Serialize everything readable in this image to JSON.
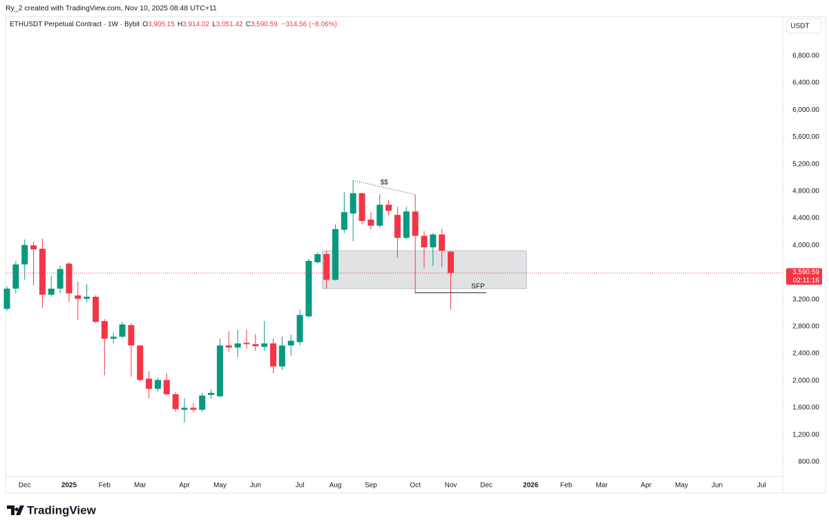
{
  "chart_data": {
    "type": "candlestick",
    "watermark": "Ry_2 created with TradingView.com, Nov 10, 2025 08:48 UTC+11",
    "title": "ETHUSDT Perpetual Contract · 1W · Bybit",
    "header": {
      "open_key": "O",
      "open": "3,905.15",
      "high_key": "H",
      "high": "3,914.02",
      "low_key": "L",
      "low": "3,051.42",
      "close_key": "C",
      "close": "3,590.59",
      "change": "−314.56 (−8.06%)"
    },
    "currency": "USDT",
    "last_price_label": "3,590.59",
    "countdown": "02:11:16",
    "brand": "TradingView",
    "up_color": "#089981",
    "down_color": "#f23645",
    "grid": false,
    "categories": [
      null,
      null,
      "Dec",
      null,
      null,
      null,
      null,
      "2025",
      null,
      null,
      null,
      "Feb",
      null,
      null,
      null,
      "Mar",
      null,
      null,
      null,
      null,
      "Apr",
      null,
      null,
      null,
      "May",
      null,
      null,
      null,
      "Jun",
      null,
      null,
      null,
      null,
      "Jul",
      null,
      null,
      null,
      "Aug",
      null,
      null,
      null,
      "Sep",
      null,
      null,
      null,
      null,
      "Oct",
      null,
      null,
      null,
      "Nov",
      null,
      null,
      null,
      "Dec",
      null,
      null,
      null,
      null,
      "2026",
      null,
      null,
      null,
      "Feb",
      null,
      null,
      null,
      "Mar",
      null,
      null,
      null,
      null,
      "Apr",
      null,
      null,
      null,
      "May",
      null,
      null,
      null,
      "Jun",
      null,
      null,
      null,
      null,
      "Jul"
    ],
    "open": [
      3063,
      3360,
      3718,
      4000,
      3950,
      3270,
      3360,
      3730,
      3260,
      3210,
      3240,
      2880,
      2620,
      2650,
      2820,
      2520,
      2030,
      1880,
      2010,
      1800,
      1570,
      1600,
      1570,
      1790,
      1770,
      2520,
      2490,
      2560,
      2540,
      2500,
      2550,
      2210,
      2520,
      2570,
      2950,
      3750,
      3870,
      3490,
      4230,
      4470,
      4770,
      4380,
      4290,
      4600,
      4450,
      4110,
      4500,
      4140,
      3970,
      4160,
      3905.15,
      null,
      null,
      null,
      null,
      null,
      null,
      null,
      null,
      null,
      null,
      null,
      null,
      null,
      null,
      null,
      null,
      null,
      null,
      null,
      null,
      null,
      null,
      null,
      null,
      null,
      null,
      null,
      null,
      null,
      null,
      null,
      null,
      null,
      null,
      null
    ],
    "high": [
      3400,
      3770,
      4087,
      4055,
      4100,
      3550,
      3700,
      3750,
      3460,
      3430,
      3260,
      2910,
      2710,
      2870,
      2850,
      2520,
      2140,
      2040,
      2110,
      1830,
      1740,
      1670,
      1820,
      1870,
      2620,
      2730,
      2750,
      2750,
      2690,
      2880,
      2620,
      2650,
      2680,
      3050,
      3800,
      3900,
      3920,
      4310,
      4790,
      4960,
      4770,
      4490,
      4750,
      4670,
      4570,
      4570,
      4750,
      4210,
      4180,
      4240,
      3914.02,
      null,
      null,
      null,
      null,
      null,
      null,
      null,
      null,
      null,
      null,
      null,
      null,
      null,
      null,
      null,
      null,
      null,
      null,
      null,
      null,
      null,
      null,
      null,
      null,
      null,
      null,
      null,
      null,
      null,
      null,
      null,
      null,
      null,
      null,
      null
    ],
    "low": [
      3030,
      3290,
      3490,
      3410,
      3080,
      3240,
      3290,
      3160,
      2900,
      3160,
      2850,
      2080,
      2550,
      2620,
      2060,
      1990,
      1740,
      1840,
      1780,
      1540,
      1380,
      1530,
      1540,
      1730,
      1750,
      2420,
      2350,
      2470,
      2440,
      2440,
      2110,
      2160,
      2370,
      2520,
      2930,
      3730,
      3360,
      3480,
      4180,
      4060,
      4310,
      4230,
      4260,
      4440,
      3820,
      4090,
      3290,
      3670,
      3700,
      3680,
      3051.42,
      null,
      null,
      null,
      null,
      null,
      null,
      null,
      null,
      null,
      null,
      null,
      null,
      null,
      null,
      null,
      null,
      null,
      null,
      null,
      null,
      null,
      null,
      null,
      null,
      null,
      null,
      null,
      null,
      null,
      null,
      null,
      null,
      null,
      null,
      null
    ],
    "close": [
      3360,
      3718,
      4005,
      3940,
      3270,
      3360,
      3650,
      3290,
      3210,
      3240,
      2870,
      2620,
      2650,
      2830,
      2520,
      2010,
      1880,
      2010,
      1800,
      1580,
      1600,
      1570,
      1780,
      1820,
      2520,
      2490,
      2550,
      2540,
      2510,
      2550,
      2210,
      2520,
      2590,
      2970,
      3770,
      3870,
      3490,
      4240,
      4490,
      4770,
      4360,
      4290,
      4600,
      4510,
      4110,
      4500,
      4140,
      3970,
      4160,
      3920,
      3590.59,
      null,
      null,
      null,
      null,
      null,
      null,
      null,
      null,
      null,
      null,
      null,
      null,
      null,
      null,
      null,
      null,
      null,
      null,
      null,
      null,
      null,
      null,
      null,
      null,
      null,
      null,
      null,
      null,
      null,
      null,
      null,
      null,
      null,
      null,
      null
    ],
    "ylim": [
      340,
      7380
    ],
    "yticks": [
      {
        "value": 800,
        "label": "800.00"
      },
      {
        "value": 1200,
        "label": "1,200.00"
      },
      {
        "value": 1600,
        "label": "1,600.00"
      },
      {
        "value": 2000,
        "label": "2,000.00"
      },
      {
        "value": 2400,
        "label": "2,400.00"
      },
      {
        "value": 2800,
        "label": "2,800.00"
      },
      {
        "value": 3200,
        "label": "3,200.00"
      },
      {
        "value": 3600,
        "label": "3,600.00"
      },
      {
        "value": 4000,
        "label": "4,000.00"
      },
      {
        "value": 4400,
        "label": "4,400.00"
      },
      {
        "value": 4800,
        "label": "4,800.00"
      },
      {
        "value": 5200,
        "label": "5,200.00"
      },
      {
        "value": 5600,
        "label": "5,600.00"
      },
      {
        "value": 6000,
        "label": "6,000.00"
      },
      {
        "value": 6400,
        "label": "6,400.00"
      },
      {
        "value": 6800,
        "label": "6,800.00"
      }
    ],
    "annotations": {
      "zone": {
        "x0": 36,
        "x1": 59,
        "low": 3360,
        "high": 3920
      },
      "sfp": {
        "label": "SFP",
        "x0": 46,
        "x1": 54,
        "price": 3300
      },
      "liquidity": {
        "label": "$$",
        "x0": 39,
        "price0": 4960,
        "x1": 46,
        "price1": 4750
      }
    }
  }
}
